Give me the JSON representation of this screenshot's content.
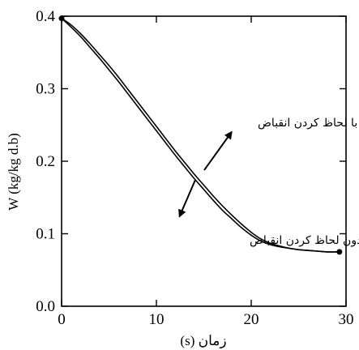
{
  "chart_data": {
    "type": "line",
    "xlabel": "زمان (s)",
    "ylabel": "W (kg/kg d.b)",
    "xlim": [
      0,
      30
    ],
    "ylim": [
      0,
      0.4
    ],
    "xticks": [
      0,
      10,
      20,
      30
    ],
    "yticks": [
      0.0,
      0.1,
      0.2,
      0.3,
      0.4
    ],
    "xtick_labels": [
      "0",
      "10",
      "20",
      "30"
    ],
    "ytick_labels": [
      "0.0",
      "0.1",
      "0.2",
      "0.3",
      "0.4"
    ],
    "grid": false,
    "series": [
      {
        "x": [
          0,
          1,
          2,
          3,
          4,
          5,
          6,
          7,
          8,
          9,
          10,
          11,
          12,
          13,
          14,
          15,
          16,
          17,
          18,
          19,
          20,
          21,
          22,
          23,
          24,
          25,
          26,
          27,
          28,
          29.3
        ],
        "values": [
          0.397,
          0.385,
          0.372,
          0.357,
          0.342,
          0.326,
          0.31,
          0.293,
          0.276,
          0.259,
          0.242,
          0.225,
          0.208,
          0.192,
          0.176,
          0.161,
          0.146,
          0.132,
          0.12,
          0.108,
          0.098,
          0.09,
          0.085,
          0.082,
          0.08,
          0.078,
          0.077,
          0.076,
          0.075,
          0.075
        ]
      },
      {
        "x": [
          0,
          1,
          2,
          3,
          4,
          5,
          6,
          7,
          8,
          9,
          10,
          11,
          12,
          13,
          14,
          15,
          16,
          17,
          18,
          19,
          20,
          21,
          22,
          23,
          24,
          25,
          26,
          27,
          28,
          29.3
        ],
        "values": [
          0.397,
          0.388,
          0.376,
          0.362,
          0.347,
          0.332,
          0.316,
          0.299,
          0.282,
          0.265,
          0.248,
          0.231,
          0.214,
          0.198,
          0.182,
          0.167,
          0.152,
          0.138,
          0.125,
          0.113,
          0.102,
          0.093,
          0.087,
          0.083,
          0.08,
          0.078,
          0.077,
          0.076,
          0.075,
          0.075
        ]
      }
    ],
    "annotations": [
      {
        "text": "با لحاظ کردن انقباض"
      },
      {
        "text": "بدون لحاظ کردن انقباض"
      }
    ]
  }
}
